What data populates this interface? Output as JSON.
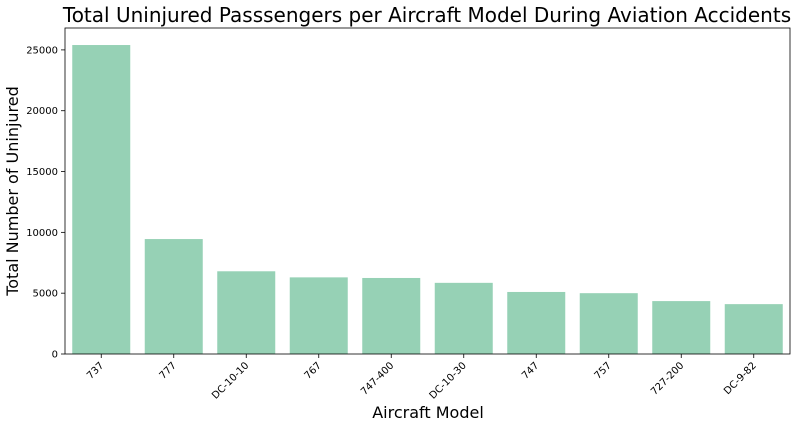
{
  "chart_data": {
    "type": "bar",
    "title": "Total Uninjured Passsengers per Aircraft Model During Aviation Accidents",
    "xlabel": "Aircraft Model",
    "ylabel": "Total Number of Uninjured",
    "categories": [
      "737",
      "777",
      "DC-10-10",
      "767",
      "747-400",
      "DC-10-30",
      "747",
      "757",
      "727-200",
      "DC-9-82"
    ],
    "values": [
      25400,
      9450,
      6800,
      6300,
      6250,
      5850,
      5100,
      5000,
      4350,
      4100
    ],
    "ylim": [
      0,
      26800
    ],
    "yticks": [
      0,
      5000,
      10000,
      15000,
      20000,
      25000
    ],
    "grid": false,
    "legend": "none",
    "bar_color": "#96d1b5",
    "x_tick_rotation_deg": 45
  }
}
